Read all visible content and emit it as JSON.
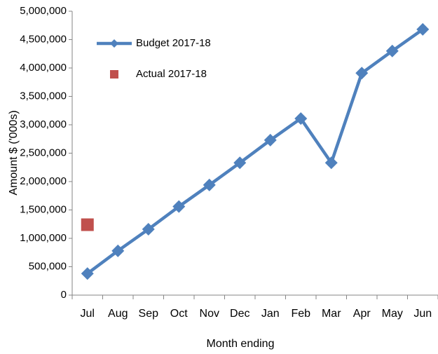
{
  "chart_data": {
    "type": "line",
    "x_label": "Month ending",
    "y_label": "Amount $ ('000s)",
    "categories": [
      "Jul",
      "Aug",
      "Sep",
      "Oct",
      "Nov",
      "Dec",
      "Jan",
      "Feb",
      "Mar",
      "Apr",
      "May",
      "Jun"
    ],
    "series": [
      {
        "name": "Budget 2017-18",
        "color": "#4f81bd",
        "marker": "diamond",
        "values": [
          380000,
          780000,
          1160000,
          1560000,
          1940000,
          2330000,
          2730000,
          3110000,
          2330000,
          3910000,
          4300000,
          4680000
        ]
      },
      {
        "name": "Actual 2017-18",
        "color": "#c0504d",
        "marker": "square",
        "values": [
          1240000,
          null,
          null,
          null,
          null,
          null,
          null,
          null,
          null,
          null,
          null,
          null
        ]
      }
    ],
    "ylim": [
      0,
      5000000
    ],
    "yticks": [
      0,
      {
        "value": 500000,
        "label": "500,000"
      },
      {
        "value": 1000000,
        "label": "1,000,000"
      },
      {
        "value": 1500000,
        "label": "1,500,000"
      },
      {
        "value": 2000000,
        "label": "2,000,000"
      },
      {
        "value": 2500000,
        "label": "2,500,000"
      },
      {
        "value": 3000000,
        "label": "3,000,000"
      },
      {
        "value": 3500000,
        "label": "3,500,000"
      },
      {
        "value": 4000000,
        "label": "4,000,000"
      },
      {
        "value": 4500000,
        "label": "4,500,000"
      },
      {
        "value": 5000000,
        "label": "5,000,000"
      }
    ],
    "grid": false,
    "legend": "upper left"
  }
}
